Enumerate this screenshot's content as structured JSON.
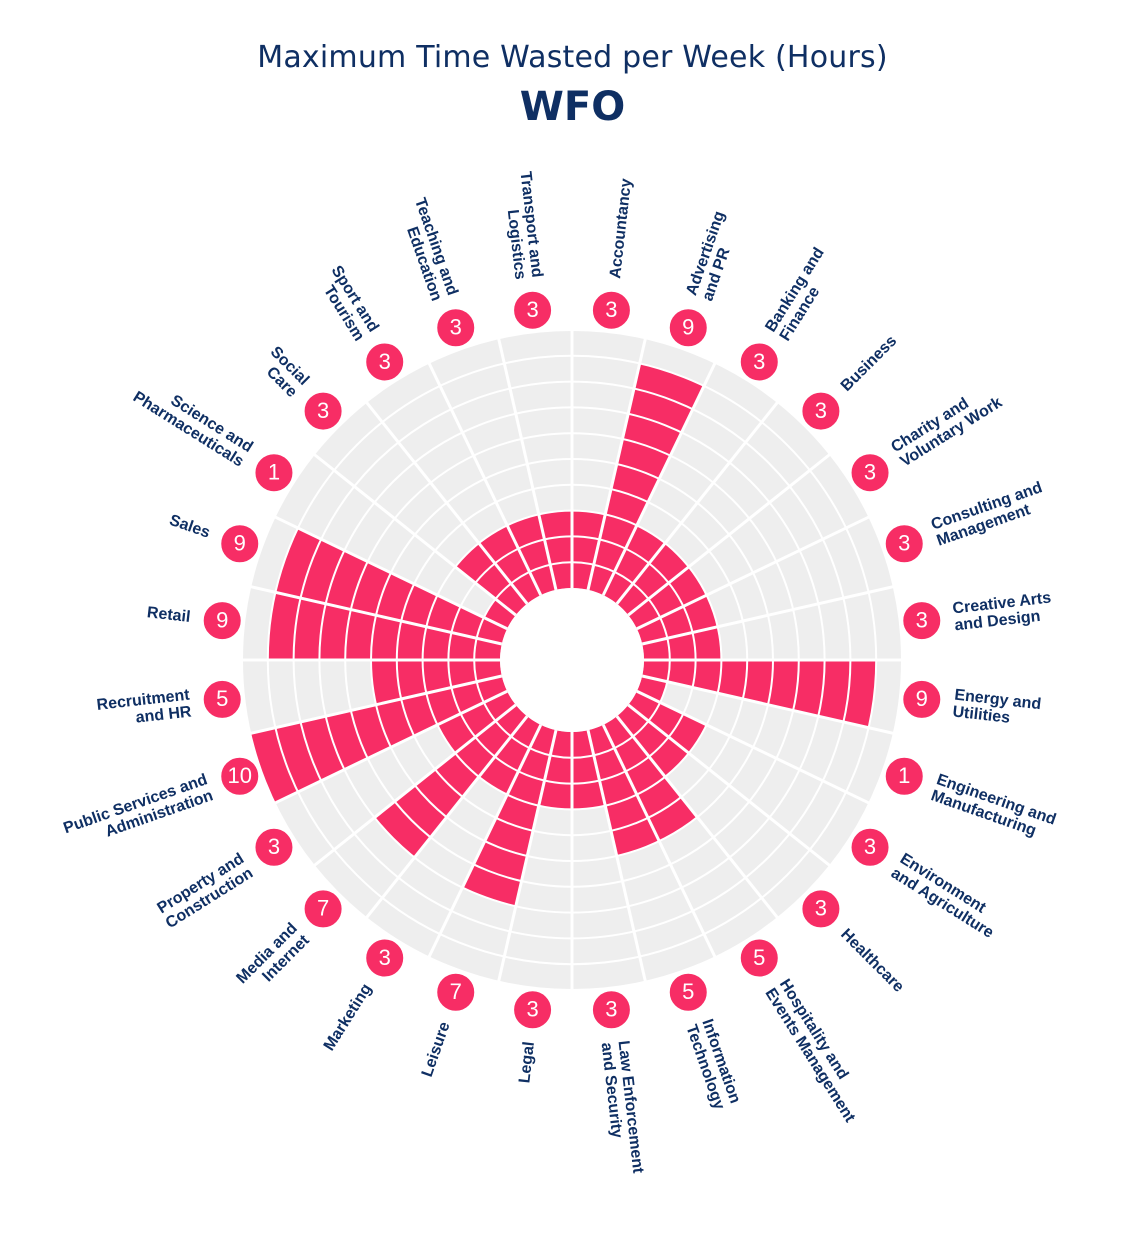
{
  "header": {
    "title": "Maximum Time Wasted per Week (Hours)",
    "subtitle": "WFO"
  },
  "colors": {
    "bar": "#f72d65",
    "background_disc": "#eeeeee",
    "grid": "#ffffff",
    "text": "#0f2f63",
    "badge": "#f72d65"
  },
  "chart_data": {
    "type": "bar",
    "polar": true,
    "title": "Maximum Time Wasted per Week (Hours)",
    "subtitle": "WFO",
    "rlim": [
      0,
      10
    ],
    "grid": true,
    "categories": [
      [
        "Accountancy"
      ],
      [
        "Advertising",
        "and PR"
      ],
      [
        "Banking and",
        "Finance"
      ],
      [
        "Business"
      ],
      [
        "Charity and",
        "Voluntary Work"
      ],
      [
        "Consulting and",
        "Management"
      ],
      [
        "Creative Arts",
        "and Design"
      ],
      [
        "Energy and",
        "Utilities"
      ],
      [
        "Engineering and",
        "Manufacturing"
      ],
      [
        "Environment",
        "and Agriculture"
      ],
      [
        "Healthcare"
      ],
      [
        "Hospitality and",
        "Events Management"
      ],
      [
        "Information",
        "Technology"
      ],
      [
        "Law Enforcement",
        "and Security"
      ],
      [
        "Legal"
      ],
      [
        "Leisure"
      ],
      [
        "Marketing"
      ],
      [
        "Media and",
        "Internet"
      ],
      [
        "Property and",
        "Construction"
      ],
      [
        "Public Services and",
        "Administration"
      ],
      [
        "Recruitment",
        "and HR"
      ],
      [
        "Retail"
      ],
      [
        "Sales"
      ],
      [
        "Science and",
        "Pharmaceuticals"
      ],
      [
        "Social",
        "Care"
      ],
      [
        "Sport and",
        "Tourism"
      ],
      [
        "Teaching and",
        "Education"
      ],
      [
        "Transport and",
        "Logistics"
      ]
    ],
    "values": [
      3,
      9,
      3,
      3,
      3,
      3,
      3,
      9,
      1,
      3,
      3,
      5,
      5,
      3,
      3,
      7,
      3,
      7,
      3,
      10,
      5,
      9,
      9,
      1,
      3,
      3,
      3,
      3
    ]
  }
}
